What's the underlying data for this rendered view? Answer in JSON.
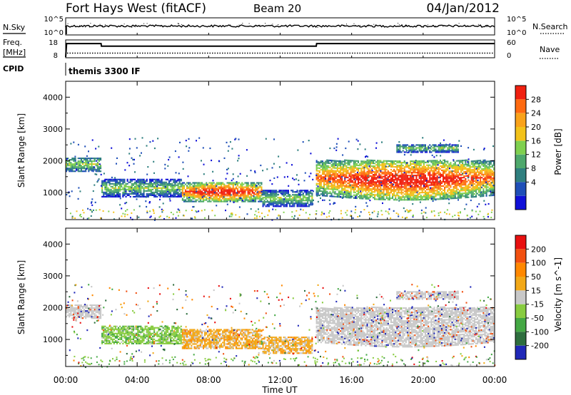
{
  "header": {
    "radar": "Fort Hays West (fitACF)",
    "beam": "Beam 20",
    "date": "04/Jan/2012"
  },
  "summary": {
    "nsky_label": "N.Sky",
    "nsearch_label": "N.Search",
    "freq_label_1": "Freq.",
    "freq_label_2": "[MHz]",
    "nave_label": "Nave",
    "cpid_label": "CPID",
    "cpid_value": "themis 3300 IF",
    "nsky_ticks": [
      "10^5",
      "10^0"
    ],
    "nsearch_ticks": [
      "10^5",
      "10^0"
    ],
    "freq_ticks": [
      "18",
      "8"
    ],
    "nave_ticks": [
      "60",
      "0"
    ],
    "frequency_series": {
      "x_hours": [
        0.0,
        0.05,
        1.98,
        2.0,
        14.02,
        14.04,
        24.0
      ],
      "values_mhz": [
        8,
        16.6,
        16.6,
        14.9,
        14.9,
        16.6,
        16.6
      ]
    },
    "nave_level": 15
  },
  "chart_data": [
    {
      "type": "heatmap",
      "name": "power",
      "ylabel": "Slant Range [km]",
      "ylim": [
        150,
        4500
      ],
      "yticks": [
        1000,
        2000,
        3000,
        4000
      ],
      "colorbar": {
        "label": "Power [dB]",
        "ticks": [
          "28",
          "24",
          "20",
          "16",
          "12",
          "8",
          "4"
        ],
        "colors": [
          "#1010d8",
          "#1f4fb8",
          "#2f7f7f",
          "#4ea86c",
          "#7fd04f",
          "#f2c21a",
          "#f9a21a",
          "#ff6a10",
          "#f02010"
        ]
      },
      "echo_regions": [
        {
          "x": [
            0.0,
            2.0
          ],
          "range_km": [
            1650,
            2100
          ],
          "level": "medium"
        },
        {
          "x": [
            2.0,
            6.5
          ],
          "range_km": [
            850,
            1400
          ],
          "level": "low"
        },
        {
          "x": [
            6.5,
            11.0
          ],
          "range_km": [
            700,
            1300
          ],
          "level": "high"
        },
        {
          "x": [
            11.0,
            13.8
          ],
          "range_km": [
            550,
            1050
          ],
          "level": "low"
        },
        {
          "x": [
            14.0,
            24.0
          ],
          "range_km": [
            900,
            2000
          ],
          "level": "high"
        },
        {
          "x": [
            18.5,
            22.0
          ],
          "range_km": [
            2250,
            2500
          ],
          "level": "low"
        }
      ]
    },
    {
      "type": "heatmap",
      "name": "velocity",
      "ylabel": "Slant Range [km]",
      "ylim": [
        150,
        4500
      ],
      "yticks": [
        1000,
        2000,
        3000,
        4000
      ],
      "colorbar": {
        "label": "Velocity [m s^-1]",
        "ticks": [
          "200",
          "100",
          "50",
          "15",
          "-15",
          "-50",
          "-100",
          "-200"
        ],
        "colors": [
          "#2028b8",
          "#2e6e3e",
          "#44a844",
          "#88cc40",
          "#c8c8c8",
          "#f2a818",
          "#ff8800",
          "#f25010",
          "#e81010"
        ]
      },
      "echo_regions": [
        {
          "x": [
            0.0,
            2.0
          ],
          "range_km": [
            1650,
            2100
          ],
          "class": "-15..15"
        },
        {
          "x": [
            2.0,
            6.5
          ],
          "range_km": [
            850,
            1400
          ],
          "class": "15..50"
        },
        {
          "x": [
            6.5,
            11.0
          ],
          "range_km": [
            700,
            1300
          ],
          "class": "-50..-15"
        },
        {
          "x": [
            11.0,
            13.8
          ],
          "range_km": [
            550,
            1050
          ],
          "class": "-50..-15"
        },
        {
          "x": [
            14.0,
            24.0
          ],
          "range_km": [
            900,
            2000
          ],
          "class": "-15..15"
        },
        {
          "x": [
            18.5,
            22.0
          ],
          "range_km": [
            2250,
            2500
          ],
          "class": "-15..15"
        }
      ]
    }
  ],
  "time_axis": {
    "label": "Time UT",
    "ticks": [
      "00:00",
      "04:00",
      "08:00",
      "12:00",
      "16:00",
      "20:00",
      "00:00"
    ],
    "range_hours": [
      0,
      24
    ]
  }
}
